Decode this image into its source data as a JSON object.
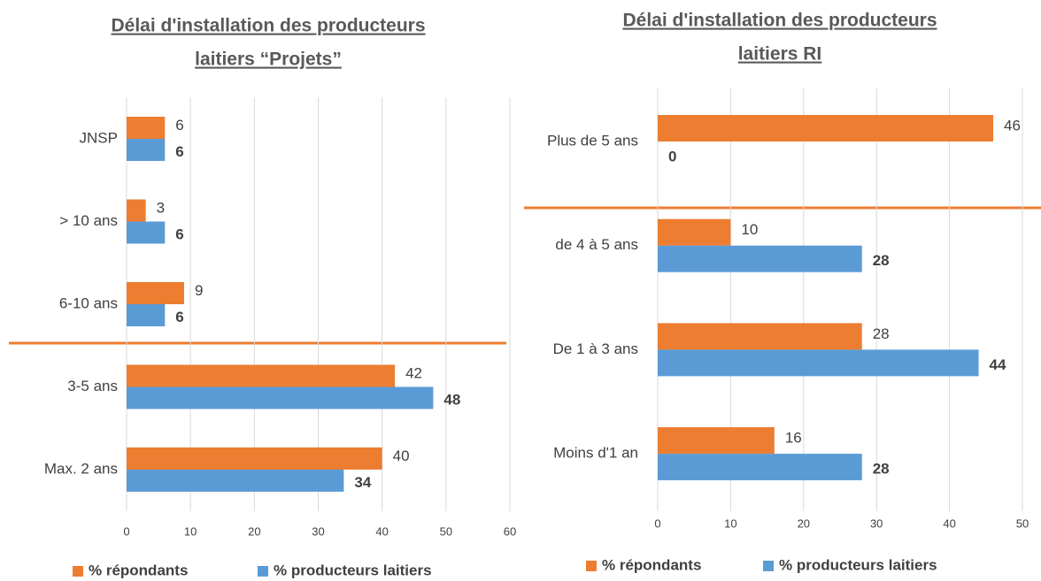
{
  "chart_data": [
    {
      "type": "bar",
      "orientation": "horizontal",
      "title": [
        "Délai d'installation des producteurs",
        "laitiers “Projets”"
      ],
      "categories": [
        "JNSP",
        "> 10 ans",
        "6-10 ans",
        "3-5 ans",
        "Max. 2 ans"
      ],
      "series": [
        {
          "name": "% répondants",
          "color": "#ED7D31",
          "values": [
            6,
            3,
            9,
            42,
            40
          ]
        },
        {
          "name": "% producteurs laitiers",
          "color": "#5B9BD5",
          "values": [
            6,
            6,
            6,
            48,
            34
          ]
        }
      ],
      "xlim": [
        0,
        60
      ],
      "xticks": [
        0,
        10,
        20,
        30,
        40,
        50,
        60
      ],
      "grid": true,
      "legend": "bottom"
    },
    {
      "type": "bar",
      "orientation": "horizontal",
      "title": [
        "Délai d'installation des producteurs",
        "laitiers RI"
      ],
      "categories": [
        "Plus de 5 ans",
        "de 4 à 5 ans",
        "De 1 à 3 ans",
        "Moins d'1 an"
      ],
      "series": [
        {
          "name": "% répondants",
          "color": "#ED7D31",
          "values": [
            46,
            10,
            28,
            16
          ]
        },
        {
          "name": "% producteurs laitiers",
          "color": "#5B9BD5",
          "values": [
            0,
            28,
            44,
            28
          ]
        }
      ],
      "xlim": [
        0,
        50
      ],
      "xticks": [
        0,
        10,
        20,
        30,
        40,
        50
      ],
      "grid": true,
      "legend": "bottom"
    }
  ]
}
